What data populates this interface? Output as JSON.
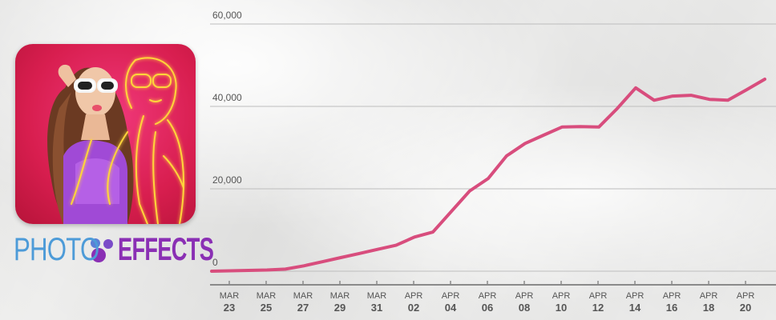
{
  "brand": {
    "left_text": "PHOTO",
    "right_text": "EFFECTS",
    "left_color": "#4d9bd8",
    "right_color": "#8a2fb4",
    "icon": "photo-effects-app-icon"
  },
  "chart_data": {
    "type": "line",
    "title": "",
    "xlabel": "",
    "ylabel": "",
    "ylim": [
      0,
      60000
    ],
    "grid": true,
    "line_color": "#d84d7d",
    "yticks": [
      {
        "value": 0,
        "label": "0"
      },
      {
        "value": 20000,
        "label": "20,000"
      },
      {
        "value": 40000,
        "label": "40,000"
      },
      {
        "value": 60000,
        "label": "60,000"
      }
    ],
    "xticks": [
      {
        "mon": "MAR",
        "day": "23"
      },
      {
        "mon": "MAR",
        "day": "25"
      },
      {
        "mon": "MAR",
        "day": "27"
      },
      {
        "mon": "MAR",
        "day": "29"
      },
      {
        "mon": "MAR",
        "day": "31"
      },
      {
        "mon": "APR",
        "day": "02"
      },
      {
        "mon": "APR",
        "day": "04"
      },
      {
        "mon": "APR",
        "day": "06"
      },
      {
        "mon": "APR",
        "day": "08"
      },
      {
        "mon": "APR",
        "day": "10"
      },
      {
        "mon": "APR",
        "day": "12"
      },
      {
        "mon": "APR",
        "day": "14"
      },
      {
        "mon": "APR",
        "day": "16"
      },
      {
        "mon": "APR",
        "day": "18"
      },
      {
        "mon": "APR",
        "day": "20"
      }
    ],
    "series": [
      {
        "x": [
          "MAR 23",
          "MAR 24",
          "MAR 25",
          "MAR 26",
          "MAR 27",
          "MAR 28",
          "MAR 29",
          "MAR 30",
          "MAR 31",
          "APR 01",
          "APR 02",
          "APR 03",
          "APR 04",
          "APR 05",
          "APR 06",
          "APR 07",
          "APR 08",
          "APR 09",
          "APR 10",
          "APR 11",
          "APR 12",
          "APR 13",
          "APR 14",
          "APR 15",
          "APR 16",
          "APR 17",
          "APR 18",
          "APR 19",
          "APR 20",
          "APR 21",
          "APR 22"
        ],
        "values": [
          0,
          100,
          200,
          300,
          500,
          1300,
          2300,
          3300,
          4300,
          5300,
          6300,
          8300,
          9500,
          14500,
          19500,
          22500,
          28000,
          31000,
          33000,
          35000,
          35100,
          35000,
          39500,
          44500,
          41500,
          42500,
          42700,
          41700,
          41500,
          44000,
          46600
        ]
      }
    ]
  }
}
